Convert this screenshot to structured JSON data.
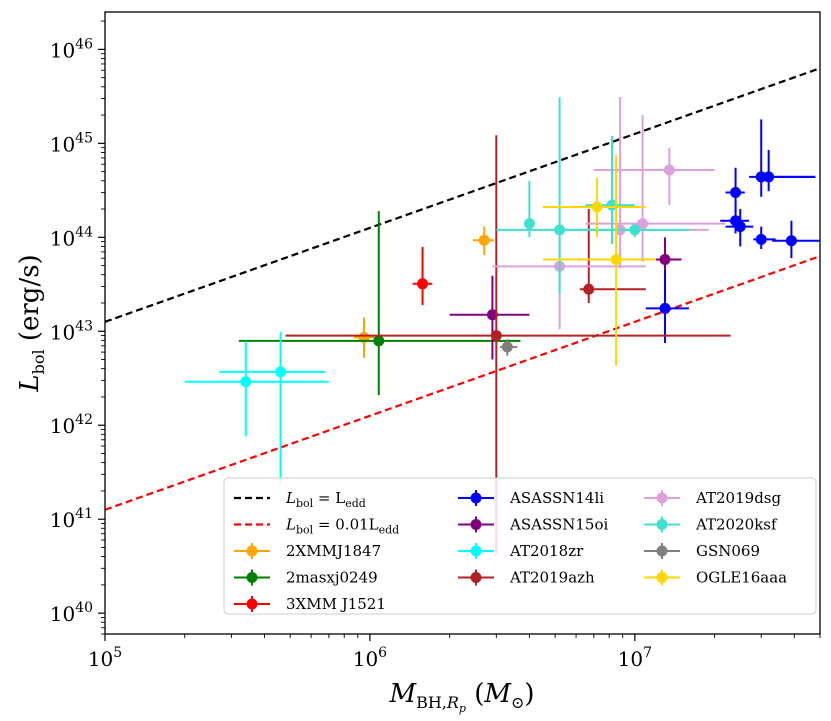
{
  "chart_data": {
    "type": "scatter",
    "title": "",
    "xlabel": "M_BH,R_p (M_⊙)",
    "ylabel": "L_bol (erg/s)",
    "xscale": "log",
    "yscale": "log",
    "xlim": [
      100000,
      50000000
    ],
    "ylim": [
      6e+39,
      2.5e+46
    ],
    "x_tick_labels": [
      {
        "value": 100000,
        "base": "10",
        "exp": "5"
      },
      {
        "value": 1000000,
        "base": "10",
        "exp": "6"
      },
      {
        "value": 10000000,
        "base": "10",
        "exp": "7"
      }
    ],
    "y_tick_labels": [
      {
        "value": 1e+40,
        "base": "10",
        "exp": "40"
      },
      {
        "value": 1e+41,
        "base": "10",
        "exp": "41"
      },
      {
        "value": 1e+42,
        "base": "10",
        "exp": "42"
      },
      {
        "value": 1e+43,
        "base": "10",
        "exp": "43"
      },
      {
        "value": 1e+44,
        "base": "10",
        "exp": "44"
      },
      {
        "value": 1e+45,
        "base": "10",
        "exp": "45"
      },
      {
        "value": 1e+46,
        "base": "10",
        "exp": "46"
      }
    ],
    "legend_position": "lower-right",
    "lines": [
      {
        "name": "L_bol = L_edd",
        "label_main": "L",
        "label_sub": "bol",
        "label_rest": " = L",
        "label_sub2": "edd",
        "color": "#000000",
        "style": "dashed",
        "x": [
          100000,
          50000000
        ],
        "y": [
          1.26e+43,
          6.3e+45
        ]
      },
      {
        "name": "L_bol = 0.01L_edd",
        "label_main": "L",
        "label_sub": "bol",
        "label_rest": " = 0.01L",
        "label_sub2": "edd",
        "color": "#ff0000",
        "style": "dashed",
        "x": [
          100000,
          50000000
        ],
        "y": [
          1.26e+41,
          6.3e+43
        ]
      }
    ],
    "series": [
      {
        "name": "2XMMJ1847",
        "color": "#ffa500",
        "points": [
          {
            "x": 950000,
            "y": 8.6e+42,
            "xlo": 870000,
            "xhi": 1040000,
            "ylo": 5.2e+42,
            "yhi": 1.4e+43
          },
          {
            "x": 2700000,
            "y": 9.3e+43,
            "xlo": 2450000,
            "xhi": 2950000,
            "ylo": 6.5e+43,
            "yhi": 1.3e+44
          }
        ]
      },
      {
        "name": "2masxj0249",
        "color": "#008000",
        "points": [
          {
            "x": 1080000,
            "y": 7.9e+42,
            "xlo": 320000,
            "xhi": 3700000,
            "ylo": 2.1e+42,
            "yhi": 1.9e+44
          }
        ]
      },
      {
        "name": "3XMM J1521",
        "color": "#ff0000",
        "points": [
          {
            "x": 1580000,
            "y": 3.2e+43,
            "xlo": 1450000,
            "xhi": 1720000,
            "ylo": 1.9e+43,
            "yhi": 7.9e+43
          }
        ]
      },
      {
        "name": "ASASSN14li",
        "color": "#0000ff",
        "points": [
          {
            "x": 13000000,
            "y": 1.75e+43,
            "xlo": 11000000,
            "xhi": 16000000,
            "ylo": 7.5e+42,
            "yhi": 9.5e+43
          },
          {
            "x": 24000000,
            "y": 3e+44,
            "xlo": 22000000,
            "xhi": 26000000,
            "ylo": 1.9e+44,
            "yhi": 5.5e+44
          },
          {
            "x": 24000000,
            "y": 1.5e+44,
            "xlo": 21000000,
            "xhi": 27000000,
            "ylo": 1.1e+44,
            "yhi": 2.4e+44
          },
          {
            "x": 25000000,
            "y": 1.3e+44,
            "xlo": 22000000,
            "xhi": 28000000,
            "ylo": 8e+43,
            "yhi": 2e+44
          },
          {
            "x": 30000000,
            "y": 4.4e+44,
            "xlo": 27000000,
            "xhi": 48000000,
            "ylo": 2.7e+44,
            "yhi": 1.8e+45
          },
          {
            "x": 30000000,
            "y": 9.5e+43,
            "xlo": 28000000,
            "xhi": 34000000,
            "ylo": 7.5e+43,
            "yhi": 1.3e+44
          },
          {
            "x": 32000000,
            "y": 4.4e+44,
            "xlo": 30000000,
            "xhi": 48000000,
            "ylo": 3.1e+44,
            "yhi": 8.5e+44
          },
          {
            "x": 39000000,
            "y": 9.2e+43,
            "xlo": 33000000,
            "xhi": 50000000,
            "ylo": 6e+43,
            "yhi": 1.5e+44
          }
        ]
      },
      {
        "name": "ASASSN15oi",
        "color": "#800080",
        "points": [
          {
            "x": 2900000,
            "y": 1.5e+43,
            "xlo": 2000000,
            "xhi": 4000000,
            "ylo": 5e+42,
            "yhi": 3.9e+43
          },
          {
            "x": 13000000,
            "y": 5.8e+43,
            "xlo": 12000000,
            "xhi": 15000000,
            "ylo": 4.5e+43,
            "yhi": 1e+44
          }
        ]
      },
      {
        "name": "AT2018zr",
        "color": "#00ffff",
        "points": [
          {
            "x": 340000,
            "y": 2.9e+42,
            "xlo": 200000,
            "xhi": 700000,
            "ylo": 7.6e+41,
            "yhi": 7.8e+42
          },
          {
            "x": 460000,
            "y": 3.7e+42,
            "xlo": 270000,
            "xhi": 680000,
            "ylo": 2.3e+41,
            "yhi": 9.8e+42
          }
        ]
      },
      {
        "name": "AT2019azh",
        "color": "#b22222",
        "points": [
          {
            "x": 3000000,
            "y": 9e+42,
            "xlo": 480000,
            "xhi": 23000000,
            "ylo": 4.3e+40,
            "yhi": 1.22e+45
          },
          {
            "x": 6700000,
            "y": 2.8e+43,
            "xlo": 6200000,
            "xhi": 11000000,
            "ylo": 2e+43,
            "yhi": 2e+44
          }
        ]
      },
      {
        "name": "AT2019dsg",
        "color": "#dda0dd",
        "points": [
          {
            "x": 5200000,
            "y": 4.9e+43,
            "xlo": 2900000,
            "xhi": 11000000,
            "ylo": 1.05e+43,
            "yhi": 1.2e+44
          },
          {
            "x": 8800000,
            "y": 1.2e+44,
            "xlo": 5500000,
            "xhi": 19000000,
            "ylo": 4.7e+43,
            "yhi": 3.1e+45
          },
          {
            "x": 10700000,
            "y": 1.4e+44,
            "xlo": 6500000,
            "xhi": 22000000,
            "ylo": 5.5e+43,
            "yhi": 2e+45
          },
          {
            "x": 13500000,
            "y": 5.2e+44,
            "xlo": 7000000,
            "xhi": 20000000,
            "ylo": 2.2e+44,
            "yhi": 9e+44
          }
        ]
      },
      {
        "name": "AT2020ksf",
        "color": "#40e0d0",
        "points": [
          {
            "x": 4000000,
            "y": 1.4e+44,
            "xlo": 3900000,
            "xhi": 4100000,
            "ylo": 1e+44,
            "yhi": 4e+44
          },
          {
            "x": 5200000,
            "y": 1.2e+44,
            "xlo": 3000000,
            "xhi": 9500000,
            "ylo": 2.5e+43,
            "yhi": 3.1e+45
          },
          {
            "x": 8200000,
            "y": 2.2e+44,
            "xlo": 6500000,
            "xhi": 10000000,
            "ylo": 8.5e+43,
            "yhi": 1.2e+45
          },
          {
            "x": 10000000,
            "y": 1.2e+44,
            "xlo": 6200000,
            "xhi": 16000000,
            "ylo": 1e+44,
            "yhi": 1.4e+44
          }
        ]
      },
      {
        "name": "GSN069",
        "color": "#808080",
        "points": [
          {
            "x": 3300000,
            "y": 6.8e+42,
            "xlo": 3100000,
            "xhi": 3600000,
            "ylo": 5.5e+42,
            "yhi": 8.2e+42
          }
        ]
      },
      {
        "name": "OGLE16aaa",
        "color": "#ffd700",
        "points": [
          {
            "x": 7200000,
            "y": 2.1e+44,
            "xlo": 4500000,
            "xhi": 11000000,
            "ylo": 1e+44,
            "yhi": 4.3e+44
          },
          {
            "x": 8500000,
            "y": 5.8e+43,
            "xlo": 4500000,
            "xhi": 12000000,
            "ylo": 4.3e+42,
            "yhi": 7.5e+44
          }
        ]
      }
    ]
  }
}
